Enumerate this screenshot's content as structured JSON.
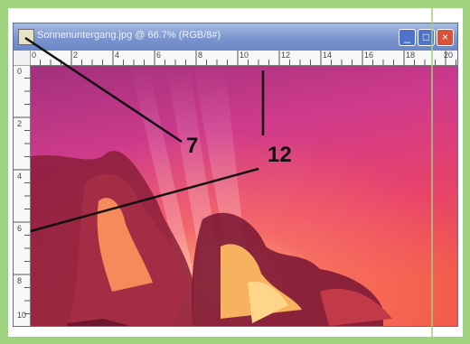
{
  "window": {
    "title": "Sonnenuntergang.jpg @ 66.7% (RGB/8#)",
    "minimize_label": "_",
    "maximize_label": "□",
    "close_label": "×"
  },
  "rulers": {
    "top_ticks": [
      "0",
      "2",
      "4",
      "6",
      "8",
      "10",
      "12",
      "14",
      "16",
      "18",
      "20"
    ],
    "left_ticks": [
      "0",
      "2",
      "4",
      "6",
      "8",
      "10"
    ]
  },
  "annotations": {
    "label_7": "7",
    "label_12": "12"
  }
}
